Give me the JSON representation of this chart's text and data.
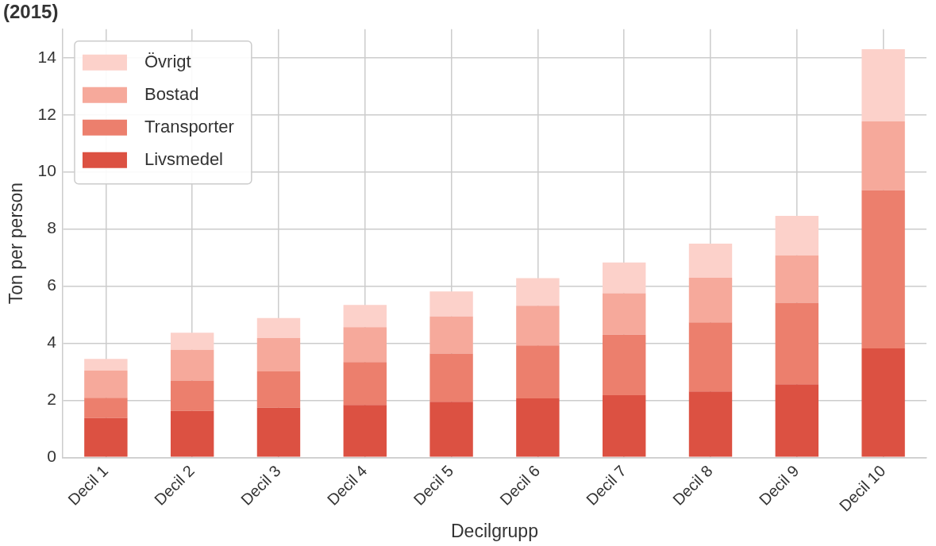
{
  "chart_data": {
    "type": "bar",
    "title": "(2015)",
    "xlabel": "Decilgrupp",
    "ylabel": "Ton per person",
    "categories": [
      "Decil 1",
      "Decil 2",
      "Decil 3",
      "Decil 4",
      "Decil 5",
      "Decil 6",
      "Decil 7",
      "Decil 8",
      "Decil 9",
      "Decil 10"
    ],
    "series": [
      {
        "name": "Livsmedel",
        "color": "#dc5142",
        "values": [
          1.38,
          1.63,
          1.74,
          1.84,
          1.95,
          2.07,
          2.18,
          2.31,
          2.56,
          3.82
        ]
      },
      {
        "name": "Transporter",
        "color": "#ec7f6d",
        "values": [
          0.71,
          1.06,
          1.27,
          1.5,
          1.69,
          1.85,
          2.12,
          2.42,
          2.86,
          5.54
        ]
      },
      {
        "name": "Bostad",
        "color": "#f6a99b",
        "values": [
          0.95,
          1.08,
          1.17,
          1.22,
          1.3,
          1.39,
          1.45,
          1.56,
          1.66,
          2.41
        ]
      },
      {
        "name": "Övrigt",
        "color": "#fcd1ca",
        "values": [
          0.41,
          0.6,
          0.7,
          0.78,
          0.87,
          0.97,
          1.08,
          1.2,
          1.38,
          2.53
        ]
      }
    ],
    "stacked": true,
    "ylim": [
      0,
      15
    ],
    "yticks": [
      0,
      2,
      4,
      6,
      8,
      10,
      12,
      14
    ],
    "grid": true,
    "legend": "top left"
  }
}
